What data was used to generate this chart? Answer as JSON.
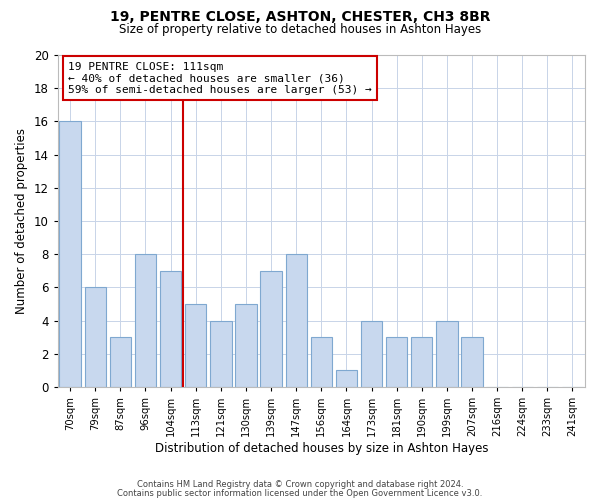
{
  "title": "19, PENTRE CLOSE, ASHTON, CHESTER, CH3 8BR",
  "subtitle": "Size of property relative to detached houses in Ashton Hayes",
  "xlabel": "Distribution of detached houses by size in Ashton Hayes",
  "ylabel": "Number of detached properties",
  "bin_labels": [
    "70sqm",
    "79sqm",
    "87sqm",
    "96sqm",
    "104sqm",
    "113sqm",
    "121sqm",
    "130sqm",
    "139sqm",
    "147sqm",
    "156sqm",
    "164sqm",
    "173sqm",
    "181sqm",
    "190sqm",
    "199sqm",
    "207sqm",
    "216sqm",
    "224sqm",
    "233sqm",
    "241sqm"
  ],
  "bar_heights": [
    16,
    6,
    3,
    8,
    7,
    5,
    4,
    5,
    7,
    8,
    3,
    1,
    4,
    3,
    3,
    4,
    3,
    0,
    0,
    0,
    0
  ],
  "bar_color": "#c8d8ee",
  "bar_edge_color": "#7fa8d0",
  "highlight_line_color": "#cc0000",
  "annotation_line1": "19 PENTRE CLOSE: 111sqm",
  "annotation_line2": "← 40% of detached houses are smaller (36)",
  "annotation_line3": "59% of semi-detached houses are larger (53) →",
  "annotation_box_color": "#ffffff",
  "annotation_box_edge_color": "#cc0000",
  "ylim": [
    0,
    20
  ],
  "yticks": [
    0,
    2,
    4,
    6,
    8,
    10,
    12,
    14,
    16,
    18,
    20
  ],
  "footer_line1": "Contains HM Land Registry data © Crown copyright and database right 2024.",
  "footer_line2": "Contains public sector information licensed under the Open Government Licence v3.0.",
  "background_color": "#ffffff",
  "grid_color": "#c8d4e8",
  "figwidth": 6.0,
  "figheight": 5.0,
  "dpi": 100
}
